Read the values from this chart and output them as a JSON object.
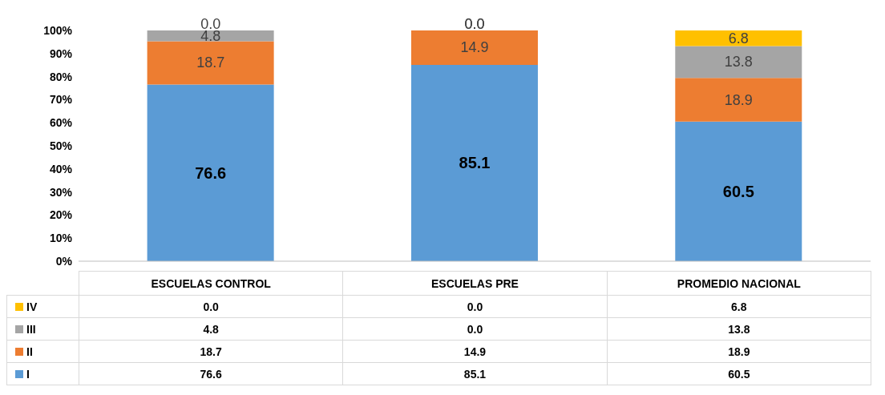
{
  "chart_data": {
    "type": "bar",
    "stacked": true,
    "categories": [
      "ESCUELAS CONTROL",
      "ESCUELAS PRE",
      "PROMEDIO NACIONAL"
    ],
    "series": [
      {
        "name": "I",
        "color": "#5b9bd5",
        "values": [
          76.6,
          85.1,
          60.5
        ],
        "value_labels": [
          "76.6",
          "85.1",
          "60.5"
        ]
      },
      {
        "name": "II",
        "color": "#ed7d31",
        "values": [
          18.7,
          14.9,
          18.9
        ],
        "value_labels": [
          "18.7",
          "14.9",
          "18.9"
        ]
      },
      {
        "name": "III",
        "color": "#a5a5a5",
        "values": [
          4.8,
          0.0,
          13.8
        ],
        "value_labels": [
          "4.8",
          "0.0",
          "13.8"
        ]
      },
      {
        "name": "IV",
        "color": "#ffc000",
        "values": [
          0.0,
          0.0,
          6.8
        ],
        "value_labels": [
          "0.0",
          "0.0",
          "6.8"
        ]
      }
    ],
    "ylim": [
      0,
      100
    ],
    "yticks": [
      {
        "value": 0,
        "label": "0%"
      },
      {
        "value": 10,
        "label": "10%"
      },
      {
        "value": 20,
        "label": "20%"
      },
      {
        "value": 30,
        "label": "30%"
      },
      {
        "value": 40,
        "label": "40%"
      },
      {
        "value": 50,
        "label": "50%"
      },
      {
        "value": 60,
        "label": "60%"
      },
      {
        "value": 70,
        "label": "70%"
      },
      {
        "value": 80,
        "label": "80%"
      },
      {
        "value": 90,
        "label": "90%"
      },
      {
        "value": 100,
        "label": "100%"
      }
    ],
    "legend": "bottom"
  }
}
